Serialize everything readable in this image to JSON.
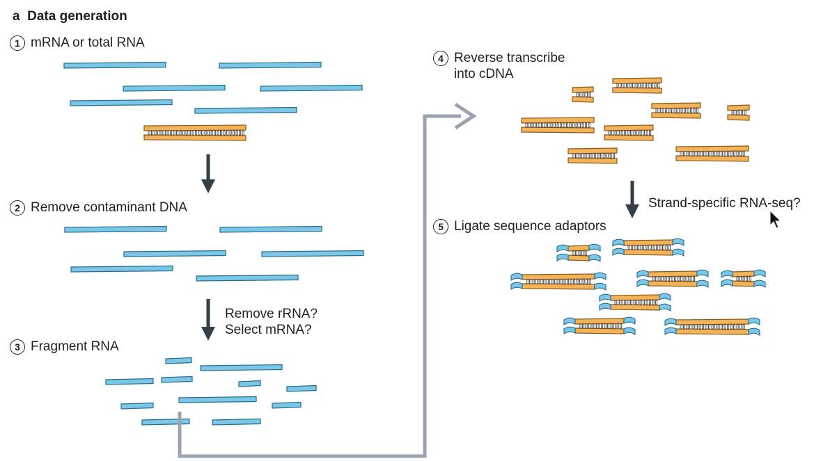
{
  "panel_label": "a",
  "title": "Data generation",
  "steps": [
    {
      "num": "1",
      "label": "mRNA or total RNA"
    },
    {
      "num": "2",
      "label": "Remove contaminant DNA"
    },
    {
      "num": "3",
      "label": "Fragment RNA"
    },
    {
      "num": "4",
      "line1": "Reverse transcribe",
      "line2": "into cDNA"
    },
    {
      "num": "5",
      "label": "Ligate sequence adaptors"
    }
  ],
  "arrow_labels": {
    "rrna": "Remove rRNA?",
    "mrna": "Select mRNA?",
    "strand": "Strand-specific RNA-seq?"
  },
  "colors": {
    "rna_fill": "#7ec6e6",
    "rna_stroke": "#1f6f96",
    "dna_fill": "#f4b25a",
    "dna_stroke": "#8a5a1a",
    "arrow_dark": "#333f48",
    "arrow_grey": "#9aa3b0"
  }
}
